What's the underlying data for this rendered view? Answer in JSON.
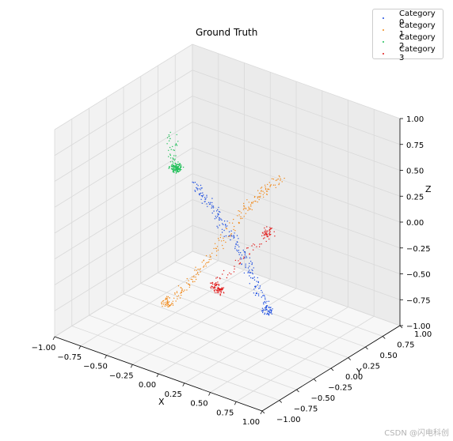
{
  "chart_data": {
    "type": "scatter",
    "projection": "3d",
    "title": "Ground Truth",
    "xlabel": "X",
    "ylabel": "Y",
    "zlabel": "Z",
    "xlim": [
      -1.0,
      1.0
    ],
    "ylim": [
      -1.0,
      1.0
    ],
    "zlim": [
      -1.0,
      1.0
    ],
    "xticks": [
      "−1.00",
      "−0.75",
      "−0.50",
      "−0.25",
      "0.00",
      "0.25",
      "0.50",
      "0.75",
      "1.00"
    ],
    "yticks": [
      "−1.00",
      "−0.75",
      "−0.50",
      "−0.25",
      "0.00",
      "0.25",
      "0.50",
      "0.75",
      "1.00"
    ],
    "zticks": [
      "−1.00",
      "−0.75",
      "−0.50",
      "−0.25",
      "0.00",
      "0.25",
      "0.50",
      "0.75",
      "1.00"
    ],
    "tick_values": [
      -1.0,
      -0.75,
      -0.5,
      -0.25,
      0.0,
      0.25,
      0.5,
      0.75,
      1.0
    ],
    "grid": true,
    "legend_position": "top-right",
    "series": [
      {
        "name": "Category 0",
        "color": "#1f4fe0",
        "part": "fuselage",
        "points": [
          [
            -0.55,
            0.35,
            0.08
          ],
          [
            -0.3,
            0.2,
            0.03
          ],
          [
            0.0,
            0.0,
            -0.03
          ],
          [
            0.3,
            -0.2,
            -0.1
          ],
          [
            0.55,
            -0.42,
            -0.18
          ],
          [
            0.8,
            -0.62,
            -0.26
          ]
        ]
      },
      {
        "name": "Category 1",
        "color": "#f08a1c",
        "part": "wings",
        "points": [
          [
            0.05,
            0.7,
            0.2
          ],
          [
            0.02,
            0.45,
            0.15
          ],
          [
            0.0,
            0.2,
            0.05
          ],
          [
            -0.02,
            -0.2,
            -0.2
          ],
          [
            -0.05,
            -0.5,
            -0.35
          ],
          [
            -0.08,
            -0.75,
            -0.45
          ]
        ]
      },
      {
        "name": "Category 2",
        "color": "#22c05a",
        "part": "tail",
        "points": [
          [
            -0.9,
            0.55,
            0.35
          ],
          [
            -0.85,
            0.5,
            0.05
          ],
          [
            -0.8,
            0.45,
            0.1
          ],
          [
            -0.75,
            0.4,
            0.15
          ]
        ]
      },
      {
        "name": "Category 3",
        "color": "#e01a1a",
        "part": "engines",
        "points": [
          [
            0.15,
            0.35,
            -0.1
          ],
          [
            0.2,
            0.3,
            -0.12
          ],
          [
            0.12,
            -0.35,
            -0.35
          ],
          [
            0.18,
            -0.4,
            -0.38
          ]
        ]
      }
    ]
  },
  "watermark": "CSDN @闪电科创"
}
